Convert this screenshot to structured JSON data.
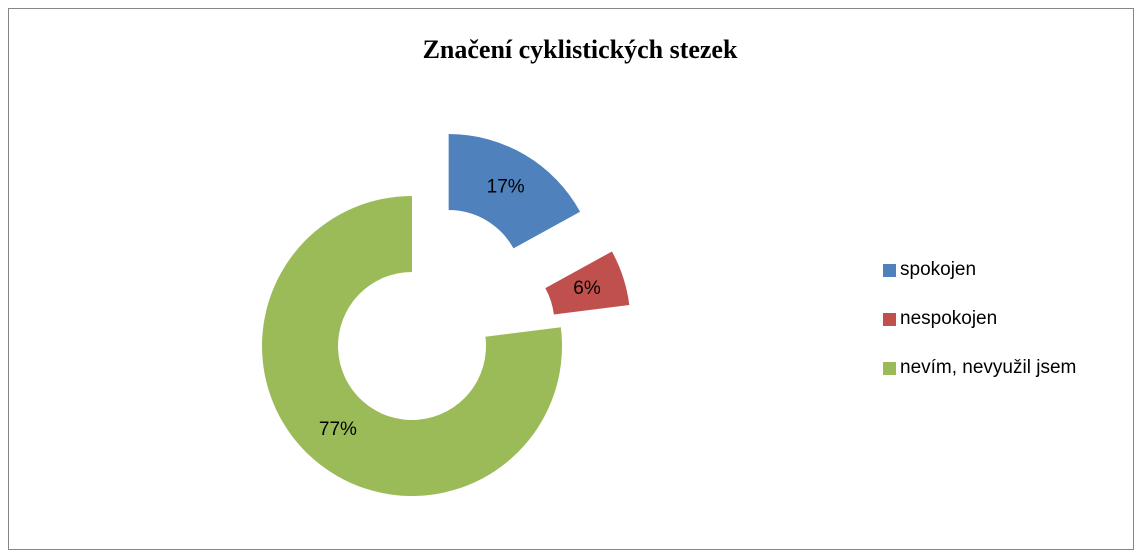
{
  "chart_data": {
    "type": "doughnut",
    "title": "Značení cyklistických stezek",
    "categories": [
      "spokojen",
      "nespokojen",
      "nevím, nevyužil jsem"
    ],
    "values": [
      17,
      6,
      77
    ],
    "value_labels": [
      "17%",
      "6%",
      "77%"
    ],
    "colors": [
      "#4f81bd",
      "#c0504d",
      "#9bbb59"
    ],
    "exploded": [
      true,
      true,
      false
    ],
    "legend": "right"
  }
}
